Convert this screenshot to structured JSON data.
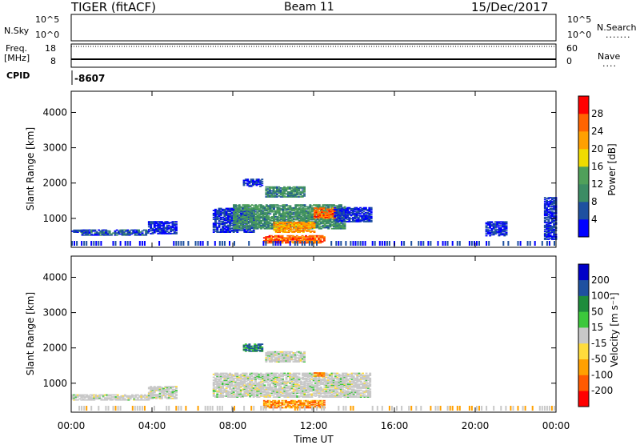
{
  "header": {
    "station": "TIGER (fitACF)",
    "beam": "Beam 11",
    "date": "15/Dec/2017"
  },
  "top_panels": {
    "nsky_label": "N.Sky",
    "nsky_ticks": [
      "10^5",
      "10^0"
    ],
    "nsky_right_ticks": [
      "10^5",
      "10^0"
    ],
    "nsearch_label": "N.Search",
    "freq_label_line1": "Freq.",
    "freq_label_line2": "[MHz]",
    "freq_ticks": [
      "18",
      "8"
    ],
    "nave_ticks": [
      "60",
      "0"
    ],
    "nave_label": "Nave",
    "cpid_label": "CPID",
    "cpid_value": "-8607"
  },
  "colors": {
    "power_scale": [
      "#0000ff",
      "#1e50a0",
      "#3c8c64",
      "#50a05a",
      "#f0dc00",
      "#ffa000",
      "#ff6400",
      "#ff0000"
    ],
    "velocity_scale": [
      "#ff0000",
      "#ff5a00",
      "#ffa000",
      "#ffdc3c",
      "#c8c8c8",
      "#3cc83c",
      "#1e8c3c",
      "#1e50a0",
      "#0000c8"
    ]
  },
  "chart_data": [
    {
      "type": "heatmap",
      "title": "",
      "xlabel": "",
      "ylabel": "Slant Range [km]",
      "xlim": [
        0,
        24
      ],
      "ylim": [
        180,
        4600
      ],
      "x_tick_labels": [
        "00:00",
        "04:00",
        "08:00",
        "12:00",
        "16:00",
        "20:00",
        "00:00"
      ],
      "y_ticks": [
        1000,
        2000,
        3000,
        4000
      ],
      "y_tick_labels": [
        "1000",
        "2000",
        "3000",
        "4000"
      ],
      "colorbar_label": "Power [dB]",
      "colorbar_tick_labels": [
        "4",
        "8",
        "12",
        "16",
        "20",
        "24",
        "28"
      ],
      "colorbar_range": [
        0,
        32
      ],
      "regions": [
        {
          "t0": 0.0,
          "t1": 0.5,
          "r0": 600,
          "r1": 680,
          "level": 5
        },
        {
          "t0": 0.5,
          "t1": 3.8,
          "r0": 520,
          "r1": 680,
          "level": 6
        },
        {
          "t0": 3.8,
          "t1": 5.2,
          "r0": 560,
          "r1": 900,
          "level": 3
        },
        {
          "t0": 7.0,
          "t1": 9.0,
          "r0": 600,
          "r1": 1300,
          "level": 4
        },
        {
          "t0": 8.0,
          "t1": 13.5,
          "r0": 700,
          "r1": 1400,
          "level": 11
        },
        {
          "t0": 9.5,
          "t1": 12.5,
          "r0": 300,
          "r1": 500,
          "level": 26
        },
        {
          "t0": 10.0,
          "t1": 12.0,
          "r0": 600,
          "r1": 900,
          "level": 22
        },
        {
          "t0": 12.0,
          "t1": 13.0,
          "r0": 1000,
          "r1": 1300,
          "level": 26
        },
        {
          "t0": 13.0,
          "t1": 14.8,
          "r0": 900,
          "r1": 1300,
          "level": 4
        },
        {
          "t0": 9.6,
          "t1": 11.5,
          "r0": 1600,
          "r1": 1900,
          "level": 10
        },
        {
          "t0": 8.5,
          "t1": 9.4,
          "r0": 1900,
          "r1": 2100,
          "level": 4
        },
        {
          "t0": 20.5,
          "t1": 21.5,
          "r0": 500,
          "r1": 900,
          "level": 4
        },
        {
          "t0": 23.4,
          "t1": 24.0,
          "r0": 400,
          "r1": 1600,
          "level": 4
        }
      ]
    },
    {
      "type": "heatmap",
      "title": "",
      "xlabel": "Time UT",
      "ylabel": "Slant Range [km]",
      "xlim": [
        0,
        24
      ],
      "ylim": [
        180,
        4600
      ],
      "x_tick_labels": [
        "00:00",
        "04:00",
        "08:00",
        "12:00",
        "16:00",
        "20:00",
        "00:00"
      ],
      "y_ticks": [
        1000,
        2000,
        3000,
        4000
      ],
      "y_tick_labels": [
        "1000",
        "2000",
        "3000",
        "4000"
      ],
      "colorbar_label": "Velocity [m s⁻¹]",
      "colorbar_tick_labels": [
        "-200",
        "-100",
        "-50",
        "-15",
        "15",
        "50",
        "100",
        "200"
      ],
      "regions": [
        {
          "t0": 0.0,
          "t1": 3.8,
          "r0": 520,
          "r1": 680,
          "class": "low"
        },
        {
          "t0": 3.8,
          "t1": 5.2,
          "r0": 560,
          "r1": 900,
          "class": "low"
        },
        {
          "t0": 7.0,
          "t1": 14.8,
          "r0": 600,
          "r1": 1300,
          "class": "low"
        },
        {
          "t0": 9.5,
          "t1": 12.5,
          "r0": 300,
          "r1": 500,
          "class": "neg"
        },
        {
          "t0": 12.0,
          "t1": 12.5,
          "r0": 1200,
          "r1": 1300,
          "class": "neg"
        },
        {
          "t0": 9.6,
          "t1": 11.5,
          "r0": 1600,
          "r1": 1900,
          "class": "low"
        },
        {
          "t0": 8.5,
          "t1": 9.4,
          "r0": 1900,
          "r1": 2100,
          "class": "pos"
        }
      ]
    }
  ]
}
